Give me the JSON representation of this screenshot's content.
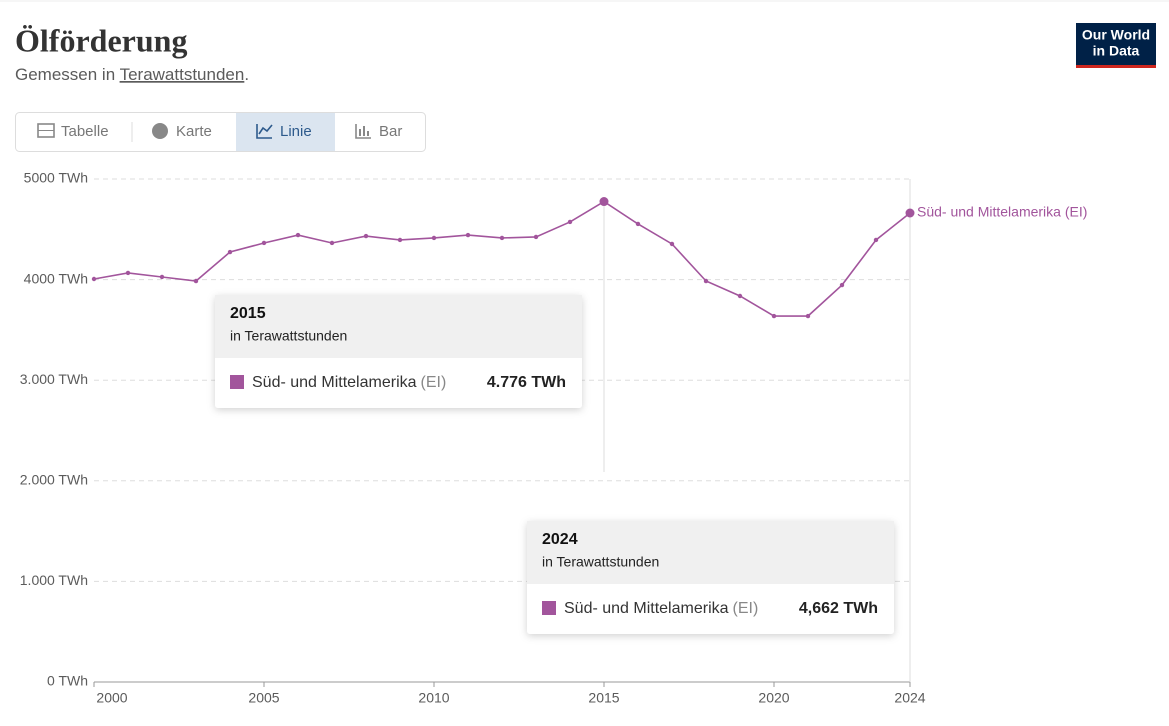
{
  "header": {
    "title": "Ölförderung",
    "subtitle": [
      "Gemessen in ",
      "Terawattstunden",
      "."
    ]
  },
  "logo": [
    "Our World",
    "in Data"
  ],
  "tabs": [
    "Tabelle",
    "Karte",
    "Linie",
    "Bar"
  ],
  "chart_data": {
    "type": "line",
    "x": [
      2000,
      2001,
      2002,
      2003,
      2004,
      2005,
      2006,
      2007,
      2008,
      2009,
      2010,
      2011,
      2012,
      2013,
      2014,
      2015,
      2016,
      2017,
      2018,
      2019,
      2020,
      2021,
      2022,
      2023,
      2024
    ],
    "series": [
      {
        "name": "Süd- und Mittelamerika (EI)",
        "color": "#a2559c",
        "values": [
          4006,
          4066,
          4026,
          3986,
          4274,
          4364,
          4443,
          4364,
          4433,
          4394,
          4414,
          4443,
          4414,
          4424,
          4573,
          4776,
          4553,
          4354,
          3986,
          3837,
          3638,
          3638,
          3946,
          4394,
          4662
        ]
      }
    ],
    "xlim": [
      2000,
      2024
    ],
    "xticks": [
      2000,
      2005,
      2010,
      2015,
      2020,
      2024
    ],
    "ylim": [
      0,
      5000
    ],
    "yticks": [
      {
        "value": 0,
        "label": "0 TWh"
      },
      {
        "value": 1000,
        "label": "1.000 TWh"
      },
      {
        "value": 2000,
        "label": "2.000 TWh"
      },
      {
        "value": 3000,
        "label": "3.000 TWh"
      },
      {
        "value": 4000,
        "label": "4000 TWh"
      },
      {
        "value": 5000,
        "label": "5000 TWh"
      }
    ],
    "grid": true,
    "tooltips": [
      {
        "x": 2015,
        "subtitle": "in Terawattstunden",
        "series": "Süd- und Mittelamerika",
        "source": "(EI)",
        "value": 4776,
        "value_label": "4.776 TWh"
      },
      {
        "x": 2024,
        "subtitle": "in Terawattstunden",
        "series": "Süd- und Mittelamerika",
        "source": "(EI)",
        "value": 4662,
        "value_label": "4,662 TWh"
      }
    ]
  }
}
